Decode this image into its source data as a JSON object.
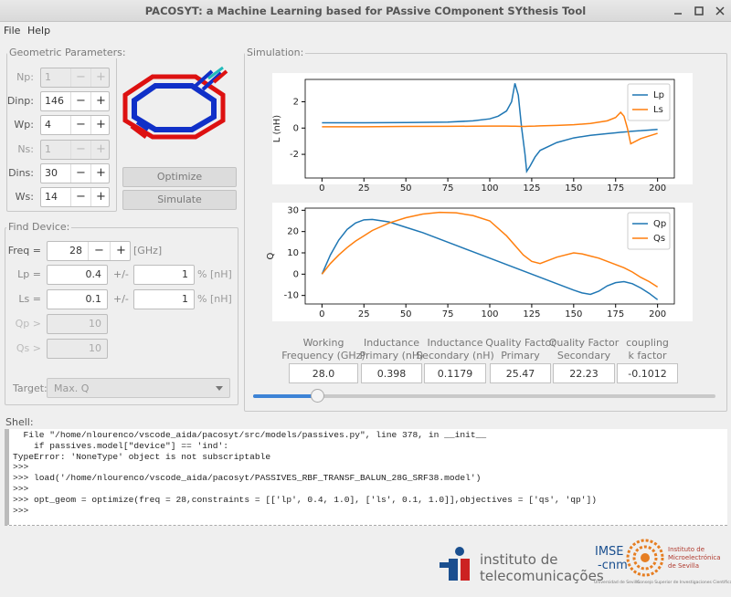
{
  "window": {
    "title": "PACOSYT: a Machine Learning based for PAssive COmponent SYthesis Tool"
  },
  "menu": [
    "File",
    "Help"
  ],
  "spin_signs": [
    "−",
    "+"
  ],
  "geometric": {
    "title": "Geometric Parameters:",
    "rows": [
      {
        "label": "Np:",
        "value": "1",
        "enabled": false
      },
      {
        "label": "Dinp:",
        "value": "146",
        "enabled": true
      },
      {
        "label": "Wp:",
        "value": "4",
        "enabled": true
      },
      {
        "label": "Ns:",
        "value": "1",
        "enabled": false
      },
      {
        "label": "Dins:",
        "value": "30",
        "enabled": true
      },
      {
        "label": "Ws:",
        "value": "14",
        "enabled": true
      }
    ]
  },
  "buttons": [
    "Optimize",
    "Simulate"
  ],
  "find_device": {
    "title": "Find Device:",
    "freq": {
      "label": "Freq =",
      "value": "28",
      "unit": "[GHz]"
    },
    "targets": [
      {
        "label": "Lp =",
        "value": "0.4",
        "pm": "+/-",
        "tol": "1",
        "unit": "% [nH]"
      },
      {
        "label": "Ls =",
        "value": "0.1",
        "pm": "+/-",
        "tol": "1",
        "unit": "% [nH]"
      }
    ],
    "limits": [
      {
        "label": "Qp >",
        "value": "10"
      },
      {
        "label": "Qs >",
        "value": "10"
      }
    ],
    "target": {
      "label": "Target:",
      "value": "Max. Q"
    }
  },
  "simulation": {
    "title": "Simulation:",
    "results": [
      {
        "header": [
          "Working",
          "Frequency (GHz)"
        ],
        "value": "28.0"
      },
      {
        "header": [
          "Inductance",
          "Primary (nH)"
        ],
        "value": "0.398"
      },
      {
        "header": [
          "Inductance",
          "Secondary (nH)"
        ],
        "value": "0.1179"
      },
      {
        "header": [
          "Quality Factor",
          "Primary"
        ],
        "value": "25.47"
      },
      {
        "header": [
          "Quality Factor",
          "Secondary"
        ],
        "value": "22.23"
      },
      {
        "header": [
          "coupling",
          "k factor"
        ],
        "value": "-0.1012"
      }
    ]
  },
  "shell": {
    "title": "Shell:",
    "lines": [
      "  File \"/home/nlourenco/vscode_aida/pacosyt/src/models/passives.py\", line 378, in __init__",
      "    if passives.model[\"device\"] == 'ind':",
      "TypeError: 'NoneType' object is not subscriptable",
      ">>>",
      ">>> load('/home/nlourenco/vscode_aida/pacosyt/PASSIVES_RBF_TRANSF_BALUN_28G_SRF38.model')",
      ">>>",
      ">>> opt_geom = optimize(freq = 28,constraints = [['lp', 0.4, 1.0], ['ls', 0.1, 1.0]],objectives = ['qs', 'qp'])",
      ">>>"
    ]
  },
  "logos": {
    "it": [
      "instituto de",
      "telecomunicações"
    ],
    "imse": [
      "IMSE",
      "-cnm"
    ],
    "imse_name": [
      "Instituto de",
      "Microelectrónica",
      "de Sevilla"
    ],
    "imse_footer": [
      "Universidad de Sevilla",
      "Consejo Superior de Investigaciones Científicas"
    ]
  },
  "chart_data": [
    {
      "type": "line",
      "y_label": "L (nH)",
      "legend": "upper right",
      "x": [
        0,
        25,
        50,
        75,
        90,
        100,
        105,
        110,
        113,
        115,
        117,
        119,
        121,
        122,
        124,
        127,
        130,
        140,
        150,
        160,
        170,
        175,
        178,
        180,
        182,
        184,
        187,
        190,
        195,
        200
      ],
      "series": [
        {
          "name": "Lp",
          "color": "#1f77b4",
          "values": [
            0.4,
            0.4,
            0.42,
            0.45,
            0.55,
            0.7,
            0.9,
            1.3,
            2.0,
            3.4,
            2.5,
            0,
            -2.0,
            -3.3,
            -2.9,
            -2.2,
            -1.7,
            -1.1,
            -0.75,
            -0.55,
            -0.42,
            -0.36,
            -0.32,
            -0.3,
            -0.28,
            -0.25,
            -0.22,
            -0.2,
            -0.15,
            -0.1
          ]
        },
        {
          "name": "Ls",
          "color": "#ff7f0e",
          "values": [
            0.1,
            0.1,
            0.12,
            0.13,
            0.14,
            0.15,
            0.15,
            0.15,
            0.14,
            0.14,
            0.13,
            0.12,
            0.12,
            0.13,
            0.14,
            0.15,
            0.17,
            0.2,
            0.25,
            0.35,
            0.55,
            0.8,
            1.2,
            0.9,
            0.0,
            -1.2,
            -1.0,
            -0.8,
            -0.6,
            -0.4
          ]
        }
      ],
      "xlim": [
        -10,
        210
      ],
      "ylim": [
        -3.8,
        3.7
      ],
      "xticks": [
        0,
        25,
        50,
        75,
        100,
        125,
        150,
        175,
        200
      ],
      "yticks": [
        -2,
        0,
        2
      ]
    },
    {
      "type": "line",
      "y_label": "Q",
      "legend": "upper right",
      "x": [
        0,
        5,
        10,
        15,
        20,
        25,
        30,
        40,
        50,
        60,
        70,
        80,
        90,
        100,
        110,
        120,
        125,
        130,
        140,
        150,
        155,
        160,
        165,
        170,
        175,
        180,
        185,
        190,
        195,
        200
      ],
      "series": [
        {
          "name": "Qp",
          "color": "#1f77b4",
          "values": [
            0,
            9,
            16,
            21,
            24,
            25.5,
            25.7,
            24.5,
            22,
            19.5,
            16.5,
            13.5,
            10.5,
            7.5,
            4.5,
            1.5,
            0,
            -1.5,
            -4.5,
            -7.5,
            -8.8,
            -9.5,
            -8,
            -5.5,
            -4,
            -3.5,
            -4.5,
            -6.5,
            -9,
            -12
          ]
        },
        {
          "name": "Qs",
          "color": "#ff7f0e",
          "values": [
            0,
            5,
            9,
            12.5,
            15.5,
            18,
            20.5,
            24,
            26.5,
            28.2,
            29,
            28.8,
            27.5,
            25,
            18,
            9,
            6,
            5,
            8,
            10,
            9.5,
            8.5,
            7.5,
            6,
            4.5,
            3,
            1,
            -1.5,
            -3.5,
            -6
          ]
        }
      ],
      "xlim": [
        -10,
        210
      ],
      "ylim": [
        -14,
        31
      ],
      "xticks": [
        0,
        25,
        50,
        75,
        100,
        125,
        150,
        175,
        200
      ],
      "yticks": [
        -10,
        0,
        10,
        20,
        30
      ]
    }
  ]
}
